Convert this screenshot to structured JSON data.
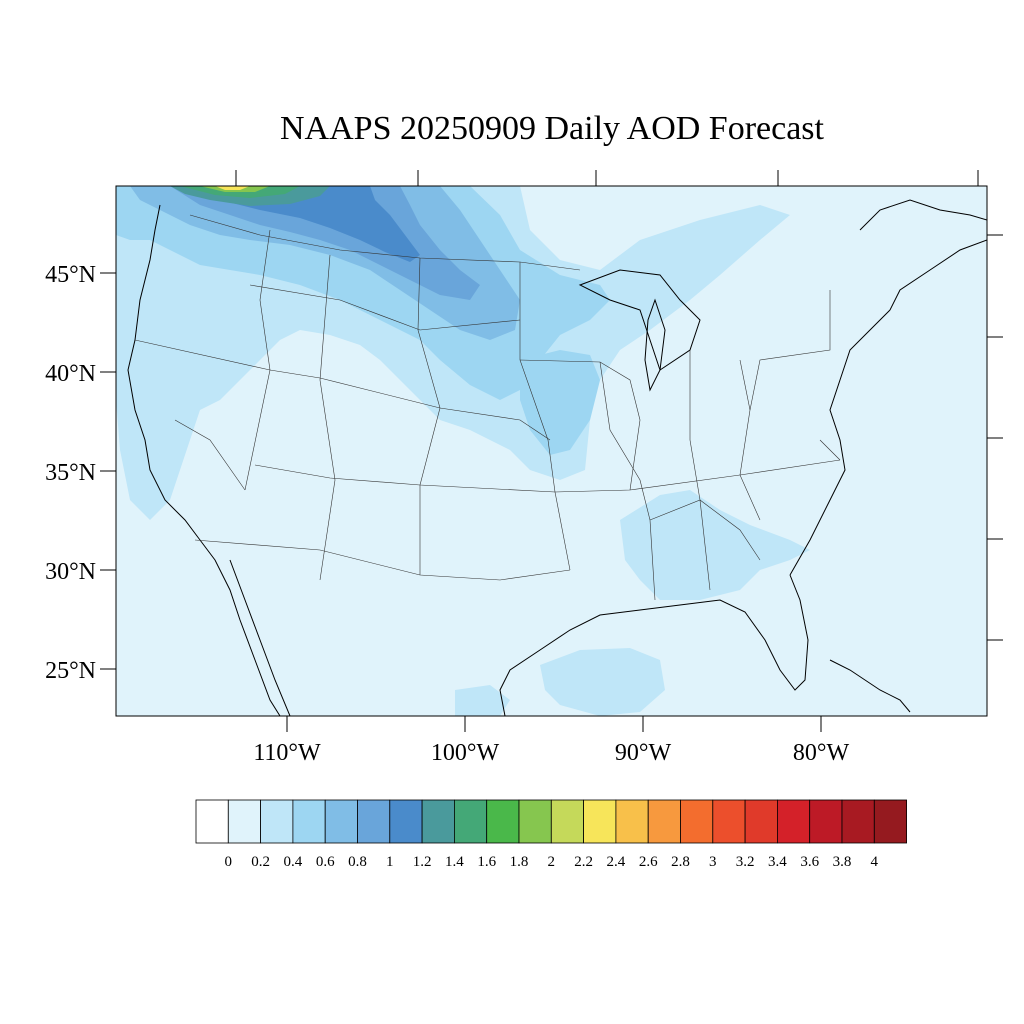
{
  "title": "NAAPS 20250909 Daily AOD Forecast",
  "lat_axis": [
    "45°N",
    "40°N",
    "35°N",
    "30°N",
    "25°N"
  ],
  "lon_axis": [
    "110°W",
    "100°W",
    "90°W",
    "80°W"
  ],
  "colorbar": {
    "tick_labels": [
      "0",
      "0.2",
      "0.4",
      "0.6",
      "0.8",
      "1",
      "1.2",
      "1.4",
      "1.6",
      "1.8",
      "2",
      "2.2",
      "2.4",
      "2.6",
      "2.8",
      "3",
      "3.2",
      "3.4",
      "3.6",
      "3.8",
      "4"
    ],
    "colors": [
      "#ffffff",
      "#e0f3fb",
      "#bfe6f8",
      "#9dd6f2",
      "#80bde6",
      "#69a5da",
      "#4a8bcb",
      "#4a9a9c",
      "#44a877",
      "#4ab84a",
      "#86c64f",
      "#c5d95a",
      "#f7e55a",
      "#f8c04a",
      "#f7993e",
      "#f36d2e",
      "#ec4f2c",
      "#e03a2a",
      "#d42129",
      "#bd1a26",
      "#a81a22",
      "#951a1f"
    ]
  },
  "map_data": {
    "type": "heatmap",
    "variable": "Daily AOD",
    "projection": "lambert-conformal",
    "lat_range": [
      22.5,
      49.5
    ],
    "lon_range": [
      -119,
      -70
    ],
    "background_value": 0.1,
    "aod_regions": [
      {
        "region": "northern Rockies / northern plains smoke plume",
        "aod": 0.9
      },
      {
        "region": "Pacific Northwest / Washington-BC border",
        "aod": 2.2
      },
      {
        "region": "Great Lakes / upper Midwest",
        "aod": 0.5
      },
      {
        "region": "Gulf Coast / Alabama-Georgia",
        "aod": 0.3
      },
      {
        "region": "Gulf of Mexico",
        "aod": 0.3
      }
    ]
  }
}
